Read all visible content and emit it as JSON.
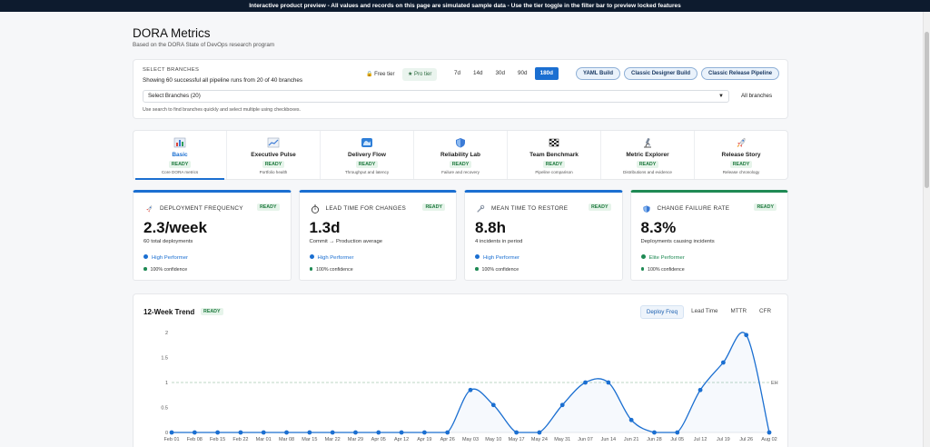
{
  "banner": "Interactive product preview - All values and records on this page are simulated sample data - Use the tier toggle in the filter bar to preview locked features",
  "page": {
    "title": "DORA Metrics",
    "subtitle": "Based on the DORA State of DevOps research program"
  },
  "filter": {
    "label": "SELECT BRANCHES",
    "info": "Showing 60 successful all pipeline runs from 20 of 40 branches",
    "tiers": {
      "free": "🔒 Free tier",
      "pro": "★ Pro tier"
    },
    "days": [
      "7d",
      "14d",
      "30d",
      "90d",
      "180d"
    ],
    "active_day": "180d",
    "pipelines": [
      "YAML Build",
      "Classic Designer Build",
      "Classic Release Pipeline"
    ],
    "select_value": "Select Branches (20)",
    "all_branches": "All branches",
    "hint": "Use search to find branches quickly and select multiple using checkboxes."
  },
  "tabs": [
    {
      "title": "Basic",
      "status": "READY",
      "desc": "Core DORA metrics",
      "icon": "bar-chart-icon"
    },
    {
      "title": "Executive Pulse",
      "status": "READY",
      "desc": "Portfolio health",
      "icon": "trend-chart-icon"
    },
    {
      "title": "Delivery Flow",
      "status": "READY",
      "desc": "Throughput and latency",
      "icon": "wave-icon"
    },
    {
      "title": "Reliability Lab",
      "status": "READY",
      "desc": "Failure and recovery",
      "icon": "shield-icon"
    },
    {
      "title": "Team Benchmark",
      "status": "READY",
      "desc": "Pipeline comparison",
      "icon": "checkered-flag-icon"
    },
    {
      "title": "Metric Explorer",
      "status": "READY",
      "desc": "Distributions and evidence",
      "icon": "microscope-icon"
    },
    {
      "title": "Release Story",
      "status": "READY",
      "desc": "Release chronology",
      "icon": "rocket-icon"
    }
  ],
  "metrics": [
    {
      "label": "DEPLOYMENT FREQUENCY",
      "badge": "READY",
      "value": "2.3/week",
      "sub": "60 total deployments",
      "perf": "High Performer",
      "conf": "100% confidence",
      "icon": "rocket-icon"
    },
    {
      "label": "LEAD TIME FOR CHANGES",
      "badge": "READY",
      "value": "1.3d",
      "sub": "Commit → Production average",
      "perf": "High Performer",
      "conf": "100% confidence",
      "icon": "stopwatch-icon"
    },
    {
      "label": "MEAN TIME TO RESTORE",
      "badge": "READY",
      "value": "8.8h",
      "sub": "4 incidents in period",
      "perf": "High Performer",
      "conf": "100% confidence",
      "icon": "wrench-icon"
    },
    {
      "label": "CHANGE FAILURE RATE",
      "badge": "READY",
      "value": "8.3%",
      "sub": "Deployments causing incidents",
      "perf": "Elite Performer",
      "conf": "100% confidence",
      "icon": "shield-icon"
    }
  ],
  "trend": {
    "title": "12-Week Trend",
    "badge": "READY",
    "tabs": [
      "Deploy Freq",
      "Lead Time",
      "MTTR",
      "CFR"
    ],
    "active_tab": "Deploy Freq"
  },
  "colors": {
    "accent": "#1b6fd1",
    "elite": "#1f8a54",
    "ready": "#1f7a3f"
  },
  "chart_data": {
    "type": "line",
    "x": [
      "Feb 01",
      "Feb 08",
      "Feb 15",
      "Feb 22",
      "Mar 01",
      "Mar 08",
      "Mar 15",
      "Mar 22",
      "Mar 29",
      "Apr 05",
      "Apr 12",
      "Apr 19",
      "Apr 26",
      "May 03",
      "May 10",
      "May 17",
      "May 24",
      "May 31",
      "Jun 07",
      "Jun 14",
      "Jun 21",
      "Jun 28",
      "Jul 05",
      "Jul 12",
      "Jul 19",
      "Jul 26",
      "Aug 02"
    ],
    "series": [
      {
        "values": [
          0,
          0,
          0,
          0,
          0,
          0,
          0,
          0,
          0,
          0,
          0,
          0,
          0,
          0.85,
          0.55,
          0,
          0,
          0.55,
          1,
          1,
          0.25,
          0,
          0,
          0.85,
          1.4,
          1.95,
          0
        ]
      }
    ],
    "yticks": [
      "0",
      "0.5",
      "1",
      "1.5",
      "2"
    ],
    "ylim": [
      0,
      2
    ],
    "reference": {
      "value": 1,
      "label": "EH"
    },
    "grid": false
  }
}
